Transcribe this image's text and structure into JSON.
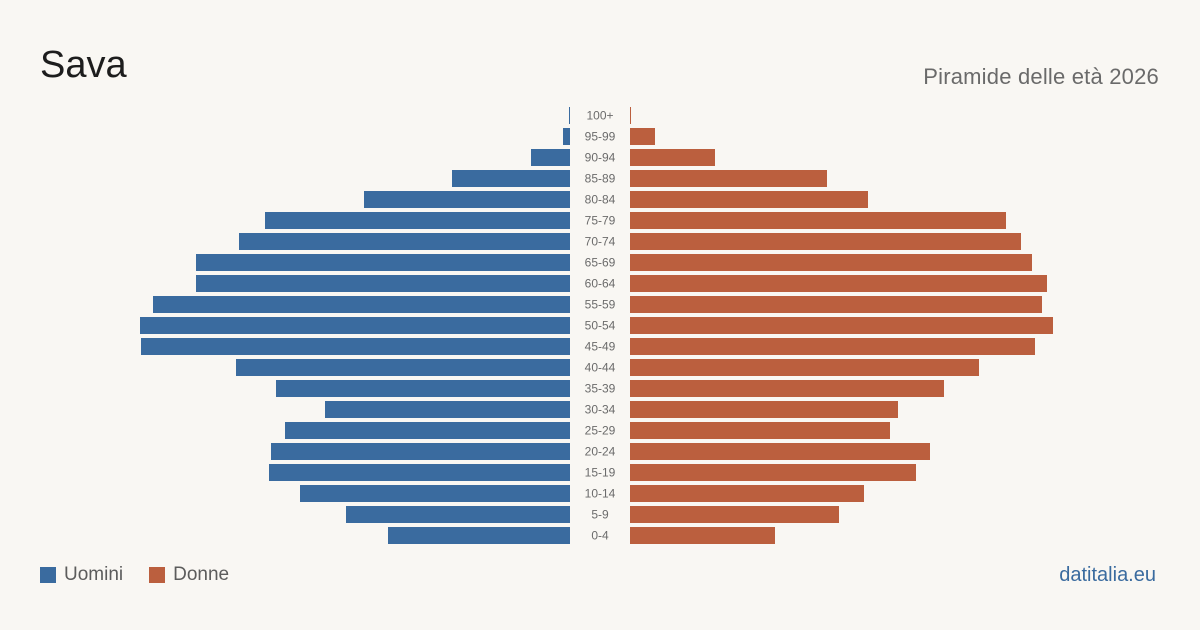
{
  "header": {
    "title": "Sava",
    "subtitle": "Piramide delle età 2026"
  },
  "legend": {
    "men_label": "Uomini",
    "women_label": "Donne"
  },
  "footer": {
    "brand": "datitalia.eu"
  },
  "colors": {
    "men": "#3a6b9f",
    "women": "#bb5f3e"
  },
  "chart_data": {
    "type": "bar",
    "orientation": "horizontal-pyramid",
    "categories": [
      "100+",
      "95-99",
      "90-94",
      "85-89",
      "80-84",
      "75-79",
      "70-74",
      "65-69",
      "60-64",
      "55-59",
      "50-54",
      "45-49",
      "40-44",
      "35-39",
      "30-34",
      "25-29",
      "20-24",
      "15-19",
      "10-14",
      "5-9",
      "0-4"
    ],
    "series": [
      {
        "name": "Uomini",
        "values": [
          1,
          7,
          39,
          118,
          206,
          305,
          331,
          374,
          374,
          417,
          430,
          429,
          334,
          294,
          245,
          285,
          299,
          301,
          270,
          224,
          182
        ]
      },
      {
        "name": "Donne",
        "values": [
          1,
          25,
          85,
          197,
          238,
          376,
          391,
          402,
          417,
          412,
          423,
          405,
          349,
          314,
          268,
          260,
          300,
          286,
          234,
          209,
          145
        ]
      }
    ],
    "legend_position": "bottom-left",
    "grid": false
  }
}
